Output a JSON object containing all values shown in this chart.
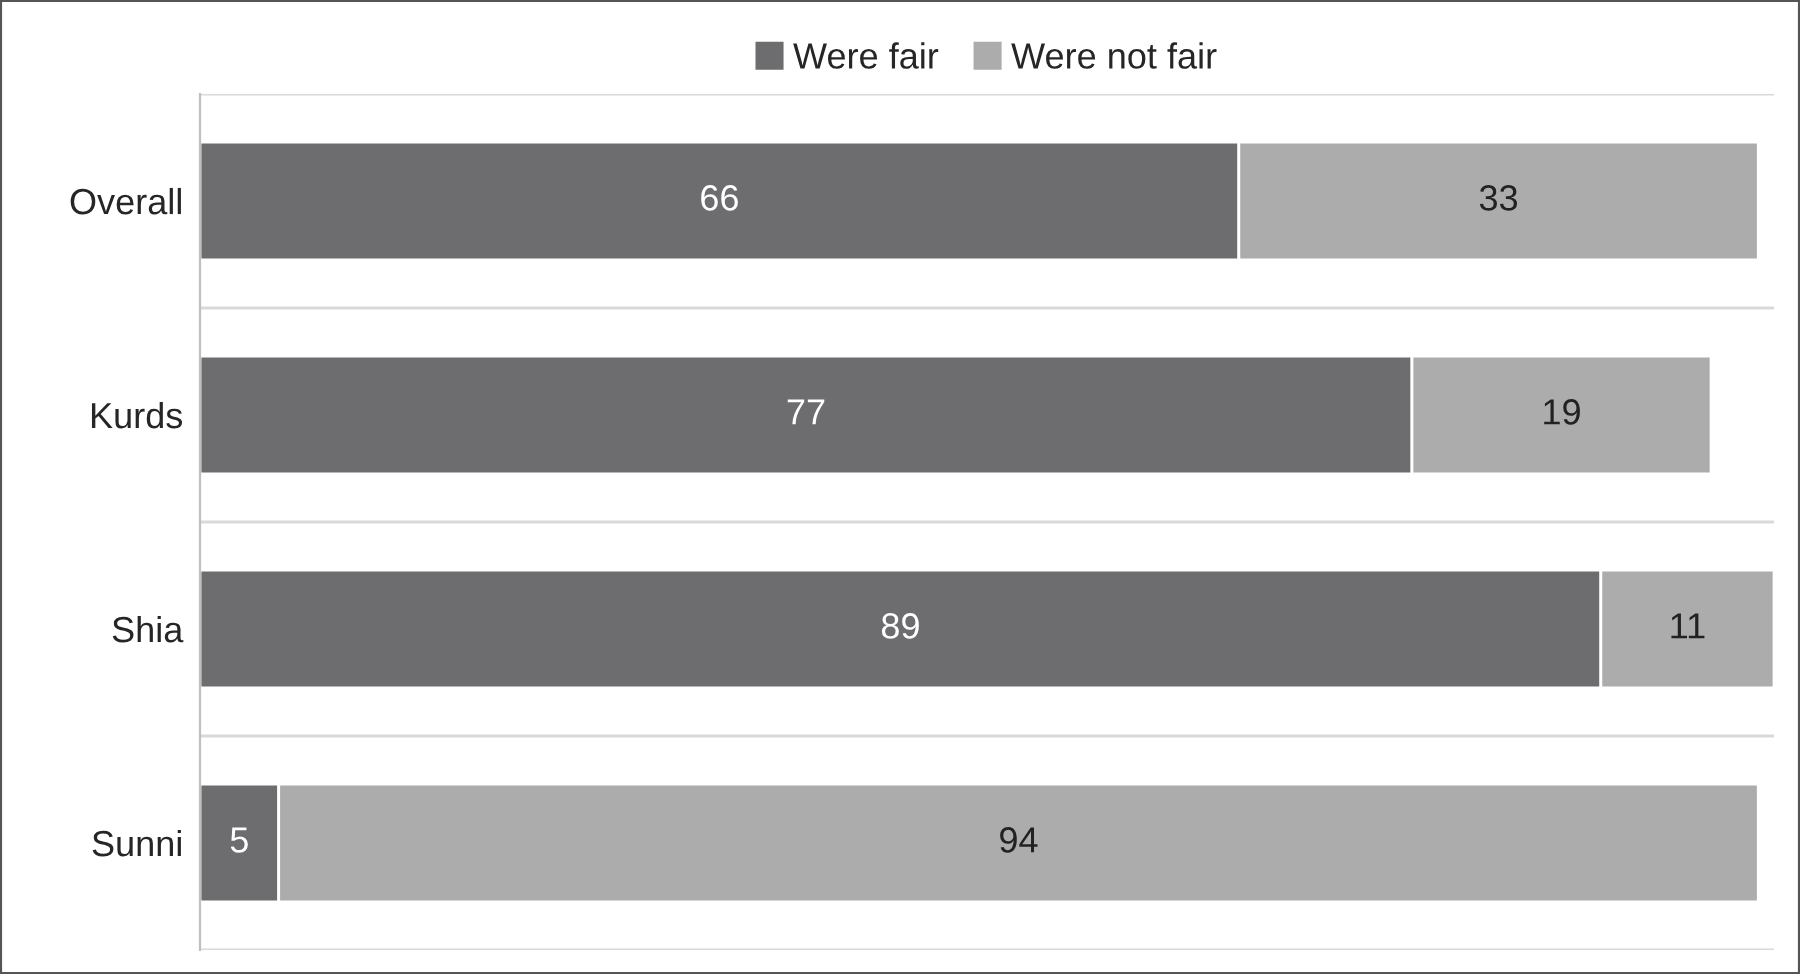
{
  "chart_data": {
    "type": "bar",
    "orientation": "horizontal",
    "stacked": true,
    "categories": [
      "Overall",
      "Kurds",
      "Shia",
      "Sunni"
    ],
    "series": [
      {
        "name": "Were fair",
        "color": "#6d6d6f",
        "values": [
          66,
          77,
          89,
          5
        ]
      },
      {
        "name": "Were not fair",
        "color": "#acacac",
        "values": [
          33,
          19,
          11,
          94
        ]
      }
    ],
    "data_labels": true,
    "legend": "top",
    "grid": "y"
  }
}
